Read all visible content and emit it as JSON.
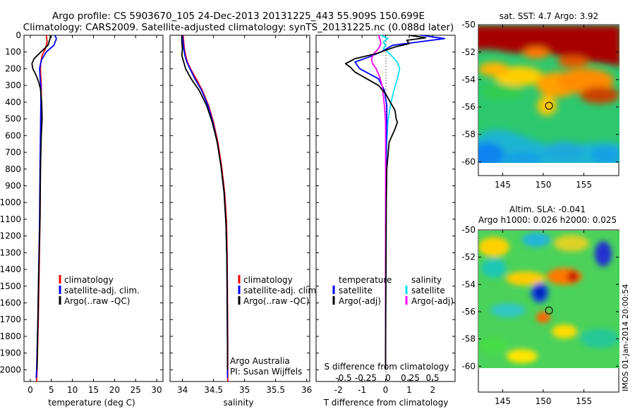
{
  "header": {
    "line1": "Argo profile: CS 5903670_105 24-Dec-2013 20131225_443 55.909S 150.699E",
    "line2": "Climatology: CARS2009. Satellite-adjusted climatology: synTS_20131225.nc (0.088d later)"
  },
  "depth_ticks": [
    0,
    100,
    200,
    300,
    400,
    500,
    600,
    700,
    800,
    900,
    1000,
    1100,
    1200,
    1300,
    1400,
    1500,
    1600,
    1700,
    1800,
    1900,
    2000
  ],
  "chart_data": [
    {
      "type": "line",
      "xlabel": "temperature (deg C)",
      "xlim": [
        -1.5,
        31.5
      ],
      "xticks": [
        0,
        5,
        10,
        15,
        20,
        25,
        30
      ],
      "ylim": [
        2070,
        0
      ],
      "legend": [
        "climatology",
        "satellite-adj. clim.",
        "Argo(..raw -QC)"
      ],
      "series": [
        {
          "name": "climatology",
          "color": "#ff0000",
          "depth": [
            0,
            40,
            80,
            120,
            160,
            200,
            250,
            300,
            400,
            600,
            800,
            1100,
            1400,
            1700,
            2000,
            2070
          ],
          "x": [
            3.8,
            4.0,
            3.6,
            2.8,
            2.5,
            2.4,
            2.5,
            2.6,
            2.6,
            2.5,
            2.4,
            2.3,
            2.1,
            1.9,
            1.6,
            1.5
          ]
        },
        {
          "name": "satellite-adj. clim.",
          "color": "#0000ff",
          "depth": [
            0,
            20,
            60,
            100,
            150,
            200,
            250,
            300,
            400,
            600,
            800,
            1100,
            1400,
            1700,
            2000,
            2050
          ],
          "x": [
            5.8,
            6.2,
            5.6,
            3.8,
            2.6,
            2.2,
            2.3,
            2.5,
            2.5,
            2.4,
            2.3,
            2.2,
            2.0,
            1.8,
            1.5,
            1.4
          ]
        },
        {
          "name": "Argo(..raw -QC)",
          "color": "#000000",
          "depth": [
            0,
            20,
            60,
            100,
            140,
            170,
            200,
            240,
            280,
            320,
            400,
            500,
            600,
            800,
            1100,
            1400,
            1700,
            2000
          ],
          "x": [
            4.8,
            4.7,
            4.2,
            2.5,
            0.9,
            0.4,
            0.6,
            1.4,
            2.0,
            2.4,
            2.7,
            2.8,
            2.6,
            2.4,
            2.3,
            2.0,
            1.8,
            1.6
          ]
        }
      ]
    },
    {
      "type": "line",
      "xlabel": "salinity",
      "xlim": [
        33.8,
        36.05
      ],
      "xticks": [
        34,
        34.5,
        35,
        35.5,
        36
      ],
      "xticklabels": [
        "34",
        "34.5",
        "35",
        "35.5",
        "36"
      ],
      "ylim": [
        2070,
        0
      ],
      "legend": [
        "climatology",
        "satellite-adj. clim.",
        "Argo(..raw -QC)"
      ],
      "series": [
        {
          "name": "climatology",
          "color": "#ff0000",
          "depth": [
            0,
            40,
            80,
            120,
            160,
            200,
            260,
            330,
            420,
            520,
            640,
            780,
            940,
            1120,
            1330,
            1570,
            1850,
            2070
          ],
          "x": [
            34.01,
            34.02,
            34.03,
            34.05,
            34.08,
            34.13,
            34.22,
            34.32,
            34.42,
            34.5,
            34.57,
            34.63,
            34.68,
            34.71,
            34.72,
            34.725,
            34.73,
            34.73
          ]
        },
        {
          "name": "satellite-adj. clim.",
          "color": "#0000ff",
          "depth": [
            0,
            40,
            80,
            120,
            160,
            200,
            260,
            330,
            420,
            520,
            640,
            780,
            940,
            1120,
            1330,
            1570,
            1850,
            2050
          ],
          "x": [
            34.0,
            34.01,
            34.02,
            34.04,
            34.07,
            34.12,
            34.2,
            34.31,
            34.41,
            34.49,
            34.56,
            34.62,
            34.67,
            34.7,
            34.715,
            34.72,
            34.725,
            34.725
          ]
        },
        {
          "name": "Argo(..raw -QC)",
          "color": "#000000",
          "depth": [
            0,
            40,
            80,
            120,
            160,
            200,
            260,
            330,
            420,
            520,
            640,
            780,
            940,
            1120,
            1330,
            1570,
            1850,
            2000
          ],
          "x": [
            33.99,
            33.99,
            34.0,
            33.99,
            34.02,
            34.05,
            34.14,
            34.27,
            34.39,
            34.48,
            34.56,
            34.62,
            34.67,
            34.7,
            34.715,
            34.72,
            34.725,
            34.725
          ]
        }
      ]
    },
    {
      "type": "line",
      "xlabel": "T difference from climatology",
      "xlim": [
        -2.95,
        2.95
      ],
      "xticks": [
        -2,
        -1,
        0,
        1,
        2
      ],
      "top_axis_label": "S difference from climatology",
      "top_ticks": [
        -0.5,
        -0.25,
        0,
        0.25,
        0.5
      ],
      "top_ticklabels": [
        "-0.5",
        "-0.25",
        "0",
        "0.25",
        "0.5"
      ],
      "ylim": [
        2070,
        0
      ],
      "legend_title_left": "temperature",
      "legend_title_right": "salinity",
      "legend_left": [
        "satellite",
        "Argo(-adj)"
      ],
      "legend_right": [
        "satellite",
        "Argo(-adj)"
      ],
      "series": [
        {
          "name": "satellite",
          "color": "#00e0ff",
          "depth": [
            0,
            20,
            40,
            60,
            80,
            100,
            130,
            160,
            200,
            260,
            330,
            420,
            520,
            640,
            800,
            1000,
            1300,
            1600,
            1900,
            2000
          ],
          "x": [
            -0.2,
            0.1,
            -0.1,
            0.0,
            -0.1,
            0.1,
            0.3,
            0.5,
            0.6,
            0.5,
            0.35,
            0.2,
            0.1,
            0.05,
            0.03,
            0.02,
            0.01,
            0.0,
            0.0,
            0.0
          ]
        },
        {
          "name": "satellite",
          "color": "#0000ff",
          "depth": [
            0,
            20,
            40,
            60,
            80,
            100,
            130,
            160,
            200,
            260,
            330,
            420,
            520,
            640,
            800,
            1000,
            1300,
            1600,
            1900,
            2000
          ],
          "x": [
            1.5,
            2.5,
            1.4,
            0.3,
            0.05,
            -0.2,
            -0.7,
            -1.3,
            -1.1,
            -0.3,
            -0.05,
            0.05,
            0.05,
            0.03,
            0.02,
            0.01,
            0.0,
            0.0,
            0.0,
            0.0
          ]
        },
        {
          "name": "Argo(-adj)",
          "color": "#ff00ff",
          "depth": [
            0,
            20,
            50,
            80,
            110,
            140,
            170,
            200,
            250,
            300,
            360,
            420,
            520,
            640,
            800,
            1000,
            1300,
            1600,
            1900,
            2000
          ],
          "x": [
            -0.3,
            -0.25,
            -0.2,
            -0.3,
            -0.5,
            -0.6,
            -0.55,
            -0.4,
            -0.25,
            -0.15,
            -0.1,
            -0.05,
            0.0,
            0.0,
            0.0,
            0.0,
            0.0,
            0.0,
            0.0,
            0.0
          ]
        },
        {
          "name": "Argo(-adj)",
          "color": "#000000",
          "depth": [
            0,
            15,
            30,
            50,
            70,
            90,
            110,
            140,
            170,
            190,
            220,
            260,
            300,
            350,
            400,
            450,
            500,
            520,
            560,
            640,
            800,
            1000,
            1300,
            1600,
            1900,
            2000
          ],
          "x": [
            1.0,
            1.7,
            0.9,
            1.0,
            0.4,
            0.0,
            -0.4,
            -1.3,
            -1.7,
            -1.5,
            -1.3,
            -0.8,
            -0.3,
            0.0,
            0.2,
            0.4,
            0.45,
            0.5,
            0.4,
            0.15,
            0.05,
            0.03,
            0.02,
            0.01,
            0.0,
            0.0
          ]
        }
      ]
    },
    {
      "type": "heatmap",
      "title": "sat. SST: 4.7 Argo: 3.92",
      "xlim": [
        142,
        159.3
      ],
      "ylim": [
        -61,
        -50
      ],
      "xticks": [
        145,
        150,
        155
      ],
      "yticks": [
        -50,
        -52,
        -54,
        -56,
        -58,
        -60
      ],
      "yticklabels": [
        "-50",
        "-52",
        "-54",
        "-56",
        "-58",
        "-60"
      ],
      "data_extent": {
        "lat_min": -60,
        "lat_max": -50
      },
      "argo_position": {
        "lon": 150.699,
        "lat": -55.909
      }
    },
    {
      "type": "heatmap",
      "title_line1": "Altim. SLA: -0.041",
      "title_line2": "Argo h1000: 0.026 h2000: 0.025",
      "xlim": [
        142,
        159.3
      ],
      "ylim": [
        -61.9,
        -50
      ],
      "xticks": [
        145,
        150,
        155
      ],
      "yticks": [
        -50,
        -52,
        -54,
        -56,
        -58,
        -60
      ],
      "yticklabels": [
        "-50",
        "-52",
        "-54",
        "-56",
        "-58",
        "-60"
      ],
      "data_extent": {
        "lat_min": -60,
        "lat_max": -50
      },
      "argo_position": {
        "lon": 150.699,
        "lat": -55.909
      }
    }
  ],
  "credits": {
    "text1": "Argo Australia",
    "text2": "PI: Susan Wijffels",
    "stamp": "IMOS 01-Jan-2014 20:00:54"
  },
  "colors": {
    "climatology": "#ff0000",
    "satellite_adj": "#0000ff",
    "argo": "#000000",
    "sat_salinity": "#00e0ff",
    "argo_salinity": "#ff00ff"
  }
}
